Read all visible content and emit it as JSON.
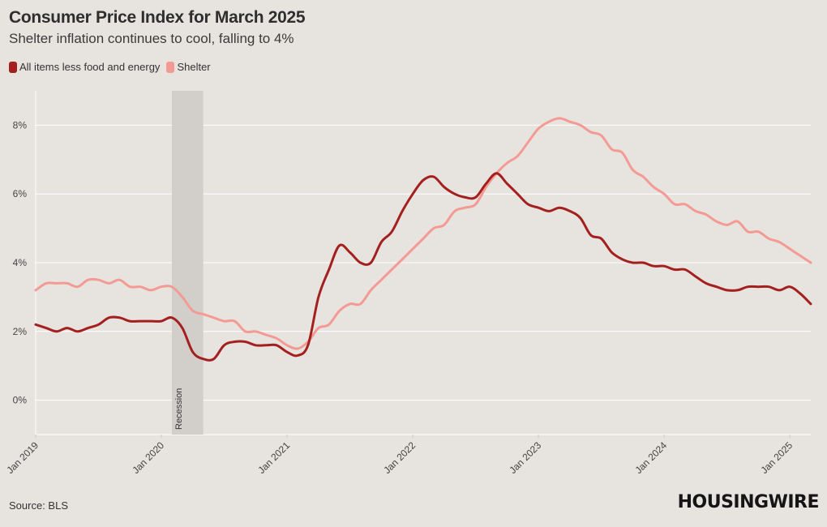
{
  "header": {
    "title": "Consumer Price Index for March 2025",
    "subtitle": "Shelter inflation continues to cool, falling to 4%"
  },
  "footer": {
    "source": "Source: BLS",
    "logo_text": "HOUSINGWIRE"
  },
  "colors": {
    "core": "#a3201f",
    "shelter": "#f49a94",
    "recession": "#d2cfcb",
    "grid": "#ffffff",
    "background": "#e7e3df"
  },
  "chart_data": {
    "type": "line",
    "title": "Consumer Price Index for March 2025",
    "subtitle": "Shelter inflation continues to cool, falling to 4%",
    "xlabel": "",
    "ylabel": "",
    "x_start": "2019-01",
    "x_end": "2025-03",
    "ylim": [
      -1,
      9
    ],
    "y_ticks": [
      0,
      2,
      4,
      6,
      8
    ],
    "y_tick_labels": [
      "0%",
      "2%",
      "4%",
      "6%",
      "8%"
    ],
    "x_ticks": [
      "2019-01",
      "2020-01",
      "2021-01",
      "2022-01",
      "2023-01",
      "2024-01",
      "2025-01"
    ],
    "x_tick_labels": [
      "Jan 2019",
      "Jan 2020",
      "Jan 2021",
      "Jan 2022",
      "Jan 2023",
      "Jan 2024",
      "Jan 2025"
    ],
    "grid": true,
    "legend_position": "top-left",
    "recession": {
      "start": "2020-02",
      "end": "2020-05",
      "label": "Recession"
    },
    "series": [
      {
        "name": "All items less food and energy",
        "color": "#a3201f",
        "values": [
          2.2,
          2.1,
          2.0,
          2.1,
          2.0,
          2.1,
          2.2,
          2.4,
          2.4,
          2.3,
          2.3,
          2.3,
          2.3,
          2.4,
          2.1,
          1.4,
          1.2,
          1.2,
          1.6,
          1.7,
          1.7,
          1.6,
          1.6,
          1.6,
          1.4,
          1.3,
          1.6,
          3.0,
          3.8,
          4.5,
          4.3,
          4.0,
          4.0,
          4.6,
          4.9,
          5.5,
          6.0,
          6.4,
          6.5,
          6.2,
          6.0,
          5.9,
          5.9,
          6.3,
          6.6,
          6.3,
          6.0,
          5.7,
          5.6,
          5.5,
          5.6,
          5.5,
          5.3,
          4.8,
          4.7,
          4.3,
          4.1,
          4.0,
          4.0,
          3.9,
          3.9,
          3.8,
          3.8,
          3.6,
          3.4,
          3.3,
          3.2,
          3.2,
          3.3,
          3.3,
          3.3,
          3.2,
          3.3,
          3.1,
          2.8
        ]
      },
      {
        "name": "Shelter",
        "color": "#f49a94",
        "values": [
          3.2,
          3.4,
          3.4,
          3.4,
          3.3,
          3.5,
          3.5,
          3.4,
          3.5,
          3.3,
          3.3,
          3.2,
          3.3,
          3.3,
          3.0,
          2.6,
          2.5,
          2.4,
          2.3,
          2.3,
          2.0,
          2.0,
          1.9,
          1.8,
          1.6,
          1.5,
          1.7,
          2.1,
          2.2,
          2.6,
          2.8,
          2.8,
          3.2,
          3.5,
          3.8,
          4.1,
          4.4,
          4.7,
          5.0,
          5.1,
          5.5,
          5.6,
          5.7,
          6.2,
          6.6,
          6.9,
          7.1,
          7.5,
          7.9,
          8.1,
          8.2,
          8.1,
          8.0,
          7.8,
          7.7,
          7.3,
          7.2,
          6.7,
          6.5,
          6.2,
          6.0,
          5.7,
          5.7,
          5.5,
          5.4,
          5.2,
          5.1,
          5.2,
          4.9,
          4.9,
          4.7,
          4.6,
          4.4,
          4.2,
          4.0
        ]
      }
    ]
  }
}
